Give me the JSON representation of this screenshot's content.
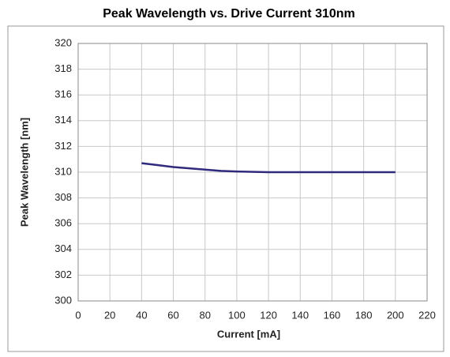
{
  "chart_data": {
    "type": "line",
    "title": "Peak Wavelength vs. Drive Current 310nm",
    "x_label": "Current [mA]",
    "y_label": "Peak Wavelength [nm]",
    "series": [
      {
        "name": "310nm",
        "color": "#2f2a7c",
        "x": [
          40,
          50,
          60,
          70,
          80,
          90,
          100,
          120,
          140,
          160,
          180,
          200
        ],
        "values": [
          310.7,
          310.55,
          310.4,
          310.3,
          310.2,
          310.1,
          310.05,
          310.0,
          310.0,
          310.0,
          310.0,
          310.0
        ]
      }
    ],
    "xlim": [
      0,
      220
    ],
    "xticks": [
      0,
      20,
      40,
      60,
      80,
      100,
      120,
      140,
      160,
      180,
      200,
      220
    ],
    "ylim": [
      300,
      320
    ],
    "yticks": [
      300,
      302,
      304,
      306,
      308,
      310,
      312,
      314,
      316,
      318,
      320
    ],
    "grid": true
  }
}
